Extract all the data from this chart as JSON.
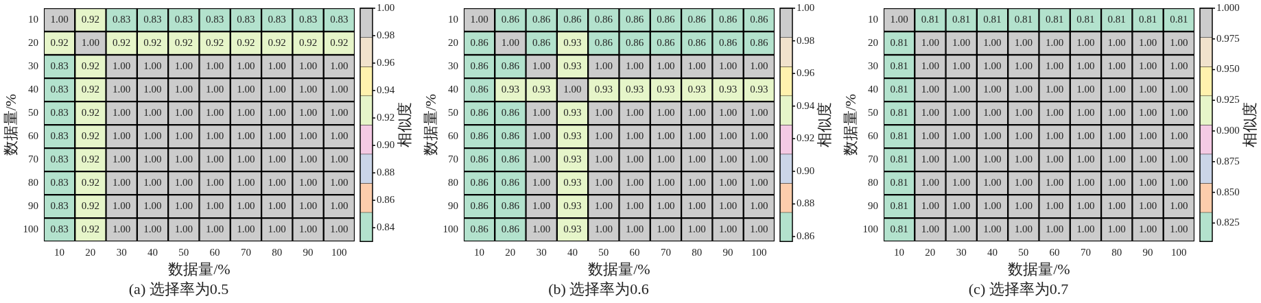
{
  "chart_data": [
    {
      "type": "heatmap",
      "title": "(a) 选择率为0.5",
      "xlabel": "数据量/%",
      "ylabel": "数据量/%",
      "clabel": "相似度",
      "categories": [
        "10",
        "20",
        "30",
        "40",
        "50",
        "60",
        "70",
        "80",
        "90",
        "100"
      ],
      "y_categories": [
        "10",
        "20",
        "30",
        "40",
        "50",
        "60",
        "70",
        "80",
        "90",
        "100"
      ],
      "cells": [
        [
          1.0,
          0.92,
          0.83,
          0.83,
          0.83,
          0.83,
          0.83,
          0.83,
          0.83,
          0.83
        ],
        [
          0.92,
          1.0,
          0.92,
          0.92,
          0.92,
          0.92,
          0.92,
          0.92,
          0.92,
          0.92
        ],
        [
          0.83,
          0.92,
          1.0,
          1.0,
          1.0,
          1.0,
          1.0,
          1.0,
          1.0,
          1.0
        ],
        [
          0.83,
          0.92,
          1.0,
          1.0,
          1.0,
          1.0,
          1.0,
          1.0,
          1.0,
          1.0
        ],
        [
          0.83,
          0.92,
          1.0,
          1.0,
          1.0,
          1.0,
          1.0,
          1.0,
          1.0,
          1.0
        ],
        [
          0.83,
          0.92,
          1.0,
          1.0,
          1.0,
          1.0,
          1.0,
          1.0,
          1.0,
          1.0
        ],
        [
          0.83,
          0.92,
          1.0,
          1.0,
          1.0,
          1.0,
          1.0,
          1.0,
          1.0,
          1.0
        ],
        [
          0.83,
          0.92,
          1.0,
          1.0,
          1.0,
          1.0,
          1.0,
          1.0,
          1.0,
          1.0
        ],
        [
          0.83,
          0.92,
          1.0,
          1.0,
          1.0,
          1.0,
          1.0,
          1.0,
          1.0,
          1.0
        ],
        [
          0.83,
          0.92,
          1.0,
          1.0,
          1.0,
          1.0,
          1.0,
          1.0,
          1.0,
          1.0
        ]
      ],
      "cell_labels": [
        [
          "1.00",
          "0.92",
          "0.83",
          "0.83",
          "0.83",
          "0.83",
          "0.83",
          "0.83",
          "0.83",
          "0.83"
        ],
        [
          "0.92",
          "1.00",
          "0.92",
          "0.92",
          "0.92",
          "0.92",
          "0.92",
          "0.92",
          "0.92",
          "0.92"
        ],
        [
          "0.83",
          "0.92",
          "1.00",
          "1.00",
          "1.00",
          "1.00",
          "1.00",
          "1.00",
          "1.00",
          "1.00"
        ],
        [
          "0.83",
          "0.92",
          "1.00",
          "1.00",
          "1.00",
          "1.00",
          "1.00",
          "1.00",
          "1.00",
          "1.00"
        ],
        [
          "0.83",
          "0.92",
          "1.00",
          "1.00",
          "1.00",
          "1.00",
          "1.00",
          "1.00",
          "1.00",
          "1.00"
        ],
        [
          "0.83",
          "0.92",
          "1.00",
          "1.00",
          "1.00",
          "1.00",
          "1.00",
          "1.00",
          "1.00",
          "1.00"
        ],
        [
          "0.83",
          "0.92",
          "1.00",
          "1.00",
          "1.00",
          "1.00",
          "1.00",
          "1.00",
          "1.00",
          "1.00"
        ],
        [
          "0.83",
          "0.92",
          "1.00",
          "1.00",
          "1.00",
          "1.00",
          "1.00",
          "1.00",
          "1.00",
          "1.00"
        ],
        [
          "0.83",
          "0.92",
          "1.00",
          "1.00",
          "1.00",
          "1.00",
          "1.00",
          "1.00",
          "1.00",
          "1.00"
        ],
        [
          "0.83",
          "0.92",
          "1.00",
          "1.00",
          "1.00",
          "1.00",
          "1.00",
          "1.00",
          "1.00",
          "1.00"
        ]
      ],
      "data_labels": true,
      "clim": [
        0.83,
        1.0
      ],
      "cticks": [
        {
          "value": 0.84,
          "label": "0.84"
        },
        {
          "value": 0.86,
          "label": "0.86"
        },
        {
          "value": 0.88,
          "label": "0.88"
        },
        {
          "value": 0.9,
          "label": "0.90"
        },
        {
          "value": 0.92,
          "label": "0.92"
        },
        {
          "value": 0.94,
          "label": "0.94"
        },
        {
          "value": 0.96,
          "label": "0.96"
        },
        {
          "value": 0.98,
          "label": "0.98"
        },
        {
          "value": 1.0,
          "label": "1.00"
        }
      ],
      "colors": [
        "#b3e2cd",
        "#fdcdac",
        "#cbd5e8",
        "#f4cae4",
        "#e6f5c9",
        "#fff2ae",
        "#f1e2cc",
        "#cccccc"
      ]
    },
    {
      "type": "heatmap",
      "title": "(b) 选择率为0.6",
      "xlabel": "数据量/%",
      "ylabel": "数据量/%",
      "clabel": "相似度",
      "categories": [
        "10",
        "20",
        "30",
        "40",
        "50",
        "60",
        "70",
        "80",
        "90",
        "100"
      ],
      "y_categories": [
        "10",
        "20",
        "30",
        "40",
        "50",
        "60",
        "70",
        "80",
        "90",
        "100"
      ],
      "cells": [
        [
          1.0,
          0.86,
          0.86,
          0.86,
          0.86,
          0.86,
          0.86,
          0.86,
          0.86,
          0.86
        ],
        [
          0.86,
          1.0,
          0.86,
          0.93,
          0.86,
          0.86,
          0.86,
          0.86,
          0.86,
          0.86
        ],
        [
          0.86,
          0.86,
          1.0,
          0.93,
          1.0,
          1.0,
          1.0,
          1.0,
          1.0,
          1.0
        ],
        [
          0.86,
          0.93,
          0.93,
          1.0,
          0.93,
          0.93,
          0.93,
          0.93,
          0.93,
          0.93
        ],
        [
          0.86,
          0.86,
          1.0,
          0.93,
          1.0,
          1.0,
          1.0,
          1.0,
          1.0,
          1.0
        ],
        [
          0.86,
          0.86,
          1.0,
          0.93,
          1.0,
          1.0,
          1.0,
          1.0,
          1.0,
          1.0
        ],
        [
          0.86,
          0.86,
          1.0,
          0.93,
          1.0,
          1.0,
          1.0,
          1.0,
          1.0,
          1.0
        ],
        [
          0.86,
          0.86,
          1.0,
          0.93,
          1.0,
          1.0,
          1.0,
          1.0,
          1.0,
          1.0
        ],
        [
          0.86,
          0.86,
          1.0,
          0.93,
          1.0,
          1.0,
          1.0,
          1.0,
          1.0,
          1.0
        ],
        [
          0.86,
          0.86,
          1.0,
          0.93,
          1.0,
          1.0,
          1.0,
          1.0,
          1.0,
          1.0
        ]
      ],
      "cell_labels": [
        [
          "1.00",
          "0.86",
          "0.86",
          "0.86",
          "0.86",
          "0.86",
          "0.86",
          "0.86",
          "0.86",
          "0.86"
        ],
        [
          "0.86",
          "1.00",
          "0.86",
          "0.93",
          "0.86",
          "0.86",
          "0.86",
          "0.86",
          "0.86",
          "0.86"
        ],
        [
          "0.86",
          "0.86",
          "1.00",
          "0.93",
          "1.00",
          "1.00",
          "1.00",
          "1.00",
          "1.00",
          "1.00"
        ],
        [
          "0.86",
          "0.93",
          "0.93",
          "1.00",
          "0.93",
          "0.93",
          "0.93",
          "0.93",
          "0.93",
          "0.93"
        ],
        [
          "0.86",
          "0.86",
          "1.00",
          "0.93",
          "1.00",
          "1.00",
          "1.00",
          "1.00",
          "1.00",
          "1.00"
        ],
        [
          "0.86",
          "0.86",
          "1.00",
          "0.93",
          "1.00",
          "1.00",
          "1.00",
          "1.00",
          "1.00",
          "1.00"
        ],
        [
          "0.86",
          "0.86",
          "1.00",
          "0.93",
          "1.00",
          "1.00",
          "1.00",
          "1.00",
          "1.00",
          "1.00"
        ],
        [
          "0.86",
          "0.86",
          "1.00",
          "0.93",
          "1.00",
          "1.00",
          "1.00",
          "1.00",
          "1.00",
          "1.00"
        ],
        [
          "0.86",
          "0.86",
          "1.00",
          "0.93",
          "1.00",
          "1.00",
          "1.00",
          "1.00",
          "1.00",
          "1.00"
        ],
        [
          "0.86",
          "0.86",
          "1.00",
          "0.93",
          "1.00",
          "1.00",
          "1.00",
          "1.00",
          "1.00",
          "1.00"
        ]
      ],
      "data_labels": true,
      "clim": [
        0.857,
        1.0
      ],
      "cticks": [
        {
          "value": 0.86,
          "label": "0.86"
        },
        {
          "value": 0.88,
          "label": "0.88"
        },
        {
          "value": 0.9,
          "label": "0.90"
        },
        {
          "value": 0.92,
          "label": "0.92"
        },
        {
          "value": 0.94,
          "label": "0.94"
        },
        {
          "value": 0.96,
          "label": "0.96"
        },
        {
          "value": 0.98,
          "label": "0.98"
        },
        {
          "value": 1.0,
          "label": "1.00"
        }
      ],
      "colors": [
        "#b3e2cd",
        "#fdcdac",
        "#cbd5e8",
        "#f4cae4",
        "#e6f5c9",
        "#fff2ae",
        "#f1e2cc",
        "#cccccc"
      ]
    },
    {
      "type": "heatmap",
      "title": "(c) 选择率为0.7",
      "xlabel": "数据量/%",
      "ylabel": "数据量/%",
      "clabel": "相似度",
      "categories": [
        "10",
        "20",
        "30",
        "40",
        "50",
        "60",
        "70",
        "80",
        "90",
        "100"
      ],
      "y_categories": [
        "10",
        "20",
        "30",
        "40",
        "50",
        "60",
        "70",
        "80",
        "90",
        "100"
      ],
      "cells": [
        [
          1.0,
          0.81,
          0.81,
          0.81,
          0.81,
          0.81,
          0.81,
          0.81,
          0.81,
          0.81
        ],
        [
          0.81,
          1.0,
          1.0,
          1.0,
          1.0,
          1.0,
          1.0,
          1.0,
          1.0,
          1.0
        ],
        [
          0.81,
          1.0,
          1.0,
          1.0,
          1.0,
          1.0,
          1.0,
          1.0,
          1.0,
          1.0
        ],
        [
          0.81,
          1.0,
          1.0,
          1.0,
          1.0,
          1.0,
          1.0,
          1.0,
          1.0,
          1.0
        ],
        [
          0.81,
          1.0,
          1.0,
          1.0,
          1.0,
          1.0,
          1.0,
          1.0,
          1.0,
          1.0
        ],
        [
          0.81,
          1.0,
          1.0,
          1.0,
          1.0,
          1.0,
          1.0,
          1.0,
          1.0,
          1.0
        ],
        [
          0.81,
          1.0,
          1.0,
          1.0,
          1.0,
          1.0,
          1.0,
          1.0,
          1.0,
          1.0
        ],
        [
          0.81,
          1.0,
          1.0,
          1.0,
          1.0,
          1.0,
          1.0,
          1.0,
          1.0,
          1.0
        ],
        [
          0.81,
          1.0,
          1.0,
          1.0,
          1.0,
          1.0,
          1.0,
          1.0,
          1.0,
          1.0
        ],
        [
          0.81,
          1.0,
          1.0,
          1.0,
          1.0,
          1.0,
          1.0,
          1.0,
          1.0,
          1.0
        ]
      ],
      "cell_labels": [
        [
          "1.00",
          "0.81",
          "0.81",
          "0.81",
          "0.81",
          "0.81",
          "0.81",
          "0.81",
          "0.81",
          "0.81"
        ],
        [
          "0.81",
          "1.00",
          "1.00",
          "1.00",
          "1.00",
          "1.00",
          "1.00",
          "1.00",
          "1.00",
          "1.00"
        ],
        [
          "0.81",
          "1.00",
          "1.00",
          "1.00",
          "1.00",
          "1.00",
          "1.00",
          "1.00",
          "1.00",
          "1.00"
        ],
        [
          "0.81",
          "1.00",
          "1.00",
          "1.00",
          "1.00",
          "1.00",
          "1.00",
          "1.00",
          "1.00",
          "1.00"
        ],
        [
          "0.81",
          "1.00",
          "1.00",
          "1.00",
          "1.00",
          "1.00",
          "1.00",
          "1.00",
          "1.00",
          "1.00"
        ],
        [
          "0.81",
          "1.00",
          "1.00",
          "1.00",
          "1.00",
          "1.00",
          "1.00",
          "1.00",
          "1.00",
          "1.00"
        ],
        [
          "0.81",
          "1.00",
          "1.00",
          "1.00",
          "1.00",
          "1.00",
          "1.00",
          "1.00",
          "1.00",
          "1.00"
        ],
        [
          "0.81",
          "1.00",
          "1.00",
          "1.00",
          "1.00",
          "1.00",
          "1.00",
          "1.00",
          "1.00",
          "1.00"
        ],
        [
          "0.81",
          "1.00",
          "1.00",
          "1.00",
          "1.00",
          "1.00",
          "1.00",
          "1.00",
          "1.00",
          "1.00"
        ],
        [
          "0.81",
          "1.00",
          "1.00",
          "1.00",
          "1.00",
          "1.00",
          "1.00",
          "1.00",
          "1.00",
          "1.00"
        ]
      ],
      "data_labels": true,
      "clim": [
        0.81,
        1.0
      ],
      "cticks": [
        {
          "value": 0.825,
          "label": "0.825"
        },
        {
          "value": 0.85,
          "label": "0.850"
        },
        {
          "value": 0.875,
          "label": "0.875"
        },
        {
          "value": 0.9,
          "label": "0.900"
        },
        {
          "value": 0.925,
          "label": "0.925"
        },
        {
          "value": 0.95,
          "label": "0.950"
        },
        {
          "value": 0.975,
          "label": "0.975"
        },
        {
          "value": 1.0,
          "label": "1.000"
        }
      ],
      "colors": [
        "#b3e2cd",
        "#fdcdac",
        "#cbd5e8",
        "#f4cae4",
        "#e6f5c9",
        "#fff2ae",
        "#f1e2cc",
        "#cccccc"
      ]
    }
  ]
}
